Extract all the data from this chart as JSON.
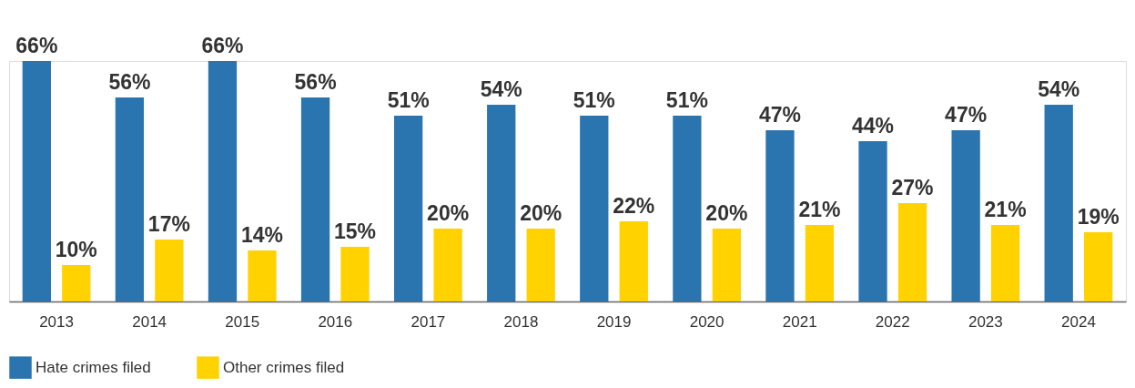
{
  "chart_data": {
    "type": "bar",
    "categories": [
      "2013",
      "2014",
      "2015",
      "2016",
      "2017",
      "2018",
      "2019",
      "2020",
      "2021",
      "2022",
      "2023",
      "2024"
    ],
    "series": [
      {
        "name": "Hate crimes filed",
        "color": "#2a74b0",
        "values": [
          66,
          56,
          66,
          56,
          51,
          54,
          51,
          51,
          47,
          44,
          47,
          54
        ],
        "value_labels": [
          "66%",
          "56%",
          "66%",
          "56%",
          "51%",
          "54%",
          "51%",
          "51%",
          "47%",
          "44%",
          "47%",
          "54%"
        ]
      },
      {
        "name": "Other crimes filed",
        "color": "#ffd200",
        "values": [
          10,
          17,
          14,
          15,
          20,
          20,
          22,
          20,
          21,
          27,
          21,
          19
        ],
        "value_labels": [
          "10%",
          "17%",
          "14%",
          "15%",
          "20%",
          "20%",
          "22%",
          "20%",
          "21%",
          "27%",
          "21%",
          "19%"
        ]
      }
    ],
    "grid": false,
    "legend": "bottom"
  }
}
